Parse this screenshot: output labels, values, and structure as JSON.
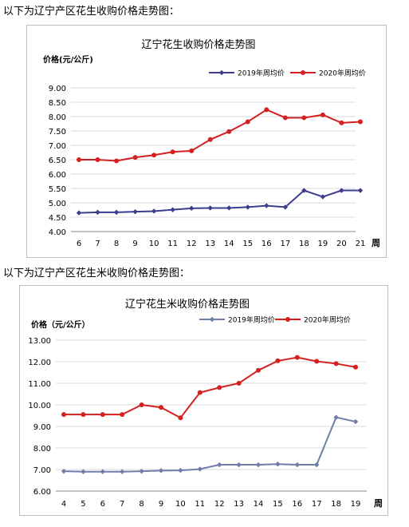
{
  "captions": [
    "以下为辽宁产区花生收购价格走势图：",
    "以下为辽宁产区花生米收购价格走势图："
  ],
  "colors": {
    "series_2019": "#3d3d8f",
    "series_2019_b": "#6f7ea8",
    "series_2020": "#d42020",
    "grid": "#d9d9d9",
    "axis": "#888888"
  },
  "chart_data": [
    {
      "type": "line",
      "title": "辽宁花生收购价格走势图",
      "ylabel": "价格(元/公斤)",
      "xlabel": "周",
      "x": [
        6,
        7,
        8,
        9,
        10,
        11,
        12,
        13,
        14,
        15,
        16,
        17,
        18,
        19,
        20,
        21
      ],
      "ylim": [
        4.0,
        9.0
      ],
      "yticks": [
        "9.00",
        "8.50",
        "8.00",
        "7.50",
        "7.00",
        "6.50",
        "6.00",
        "5.50",
        "5.00",
        "4.50",
        "4.00"
      ],
      "grid": true,
      "legend": "top-right",
      "series": [
        {
          "name": "2019年周均价",
          "marker": "diamond",
          "values": [
            4.65,
            4.67,
            4.67,
            4.69,
            4.71,
            4.76,
            4.81,
            4.82,
            4.82,
            4.85,
            4.9,
            4.85,
            5.43,
            5.21,
            5.43,
            5.43
          ]
        },
        {
          "name": "2020年周均价",
          "marker": "circle",
          "values": [
            6.5,
            6.5,
            6.46,
            6.58,
            6.66,
            6.77,
            6.81,
            7.2,
            7.48,
            7.82,
            8.24,
            7.96,
            7.96,
            8.06,
            7.78,
            7.82
          ]
        }
      ]
    },
    {
      "type": "line",
      "title": "辽宁花生米收购价格走势图",
      "ylabel": "价格（元/公斤）",
      "xlabel": "周",
      "x": [
        4,
        5,
        6,
        7,
        8,
        9,
        10,
        11,
        12,
        13,
        14,
        15,
        16,
        17,
        18,
        19
      ],
      "ylim": [
        6.0,
        13.0
      ],
      "yticks": [
        "13.00",
        "12.00",
        "11.00",
        "10.00",
        "9.00",
        "8.00",
        "7.00",
        "6.00"
      ],
      "grid": true,
      "legend": "top-right",
      "series": [
        {
          "name": "2019年周均价",
          "marker": "diamond",
          "values": [
            6.92,
            6.9,
            6.9,
            6.9,
            6.92,
            6.95,
            6.96,
            7.02,
            7.22,
            7.22,
            7.22,
            7.25,
            7.22,
            7.22,
            9.42,
            9.22
          ]
        },
        {
          "name": "2020年周均价",
          "marker": "circle",
          "values": [
            9.55,
            9.55,
            9.55,
            9.55,
            10.0,
            9.88,
            9.4,
            10.57,
            10.8,
            11.0,
            11.6,
            12.04,
            12.2,
            12.02,
            11.91,
            11.75
          ]
        }
      ]
    }
  ]
}
